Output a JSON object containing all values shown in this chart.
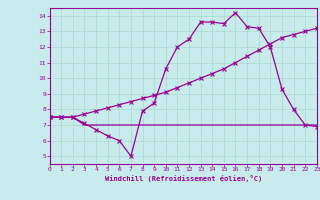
{
  "xlabel": "Windchill (Refroidissement éolien,°C)",
  "bg_color": "#c8ecec",
  "grid_color": "#aad8cc",
  "line_color": "#990099",
  "spine_color": "#660066",
  "xlim": [
    0,
    23
  ],
  "ylim": [
    4.5,
    14.5
  ],
  "xticks": [
    0,
    1,
    2,
    3,
    4,
    5,
    6,
    7,
    8,
    9,
    10,
    11,
    12,
    13,
    14,
    15,
    16,
    17,
    18,
    19,
    20,
    21,
    22,
    23
  ],
  "yticks": [
    5,
    6,
    7,
    8,
    9,
    10,
    11,
    12,
    13,
    14
  ],
  "line1_x": [
    0,
    1,
    2,
    3,
    4,
    5,
    6,
    7,
    8,
    9,
    10,
    11,
    12,
    13,
    14,
    15,
    16,
    17,
    18,
    19,
    20,
    21,
    22,
    23
  ],
  "line1_y": [
    7.5,
    7.5,
    7.5,
    7.1,
    6.7,
    6.3,
    6.0,
    5.0,
    7.9,
    8.4,
    10.6,
    12.0,
    12.5,
    13.6,
    13.6,
    13.5,
    14.2,
    13.3,
    13.2,
    12.0,
    9.3,
    8.0,
    7.0,
    6.9
  ],
  "line2_x": [
    0,
    1,
    2,
    3,
    4,
    5,
    6,
    7,
    8,
    9,
    10,
    11,
    12,
    13,
    14,
    15,
    16,
    17,
    18,
    19,
    20,
    21,
    22,
    23
  ],
  "line2_y": [
    7.5,
    7.5,
    7.5,
    7.7,
    7.9,
    8.1,
    8.3,
    8.5,
    8.7,
    8.9,
    9.1,
    9.4,
    9.7,
    10.0,
    10.3,
    10.6,
    11.0,
    11.4,
    11.8,
    12.2,
    12.6,
    12.8,
    13.0,
    13.2
  ],
  "line3_x": [
    0,
    1,
    2,
    3,
    4,
    5,
    6,
    7,
    8,
    9,
    10,
    11,
    12,
    13,
    14,
    15,
    16,
    17,
    18,
    19,
    20,
    21,
    22,
    23
  ],
  "line3_y": [
    7.5,
    7.5,
    7.5,
    7.0,
    7.0,
    7.0,
    7.0,
    7.0,
    7.0,
    7.0,
    7.0,
    7.0,
    7.0,
    7.0,
    7.0,
    7.0,
    7.0,
    7.0,
    7.0,
    7.0,
    7.0,
    7.0,
    7.0,
    7.0
  ]
}
